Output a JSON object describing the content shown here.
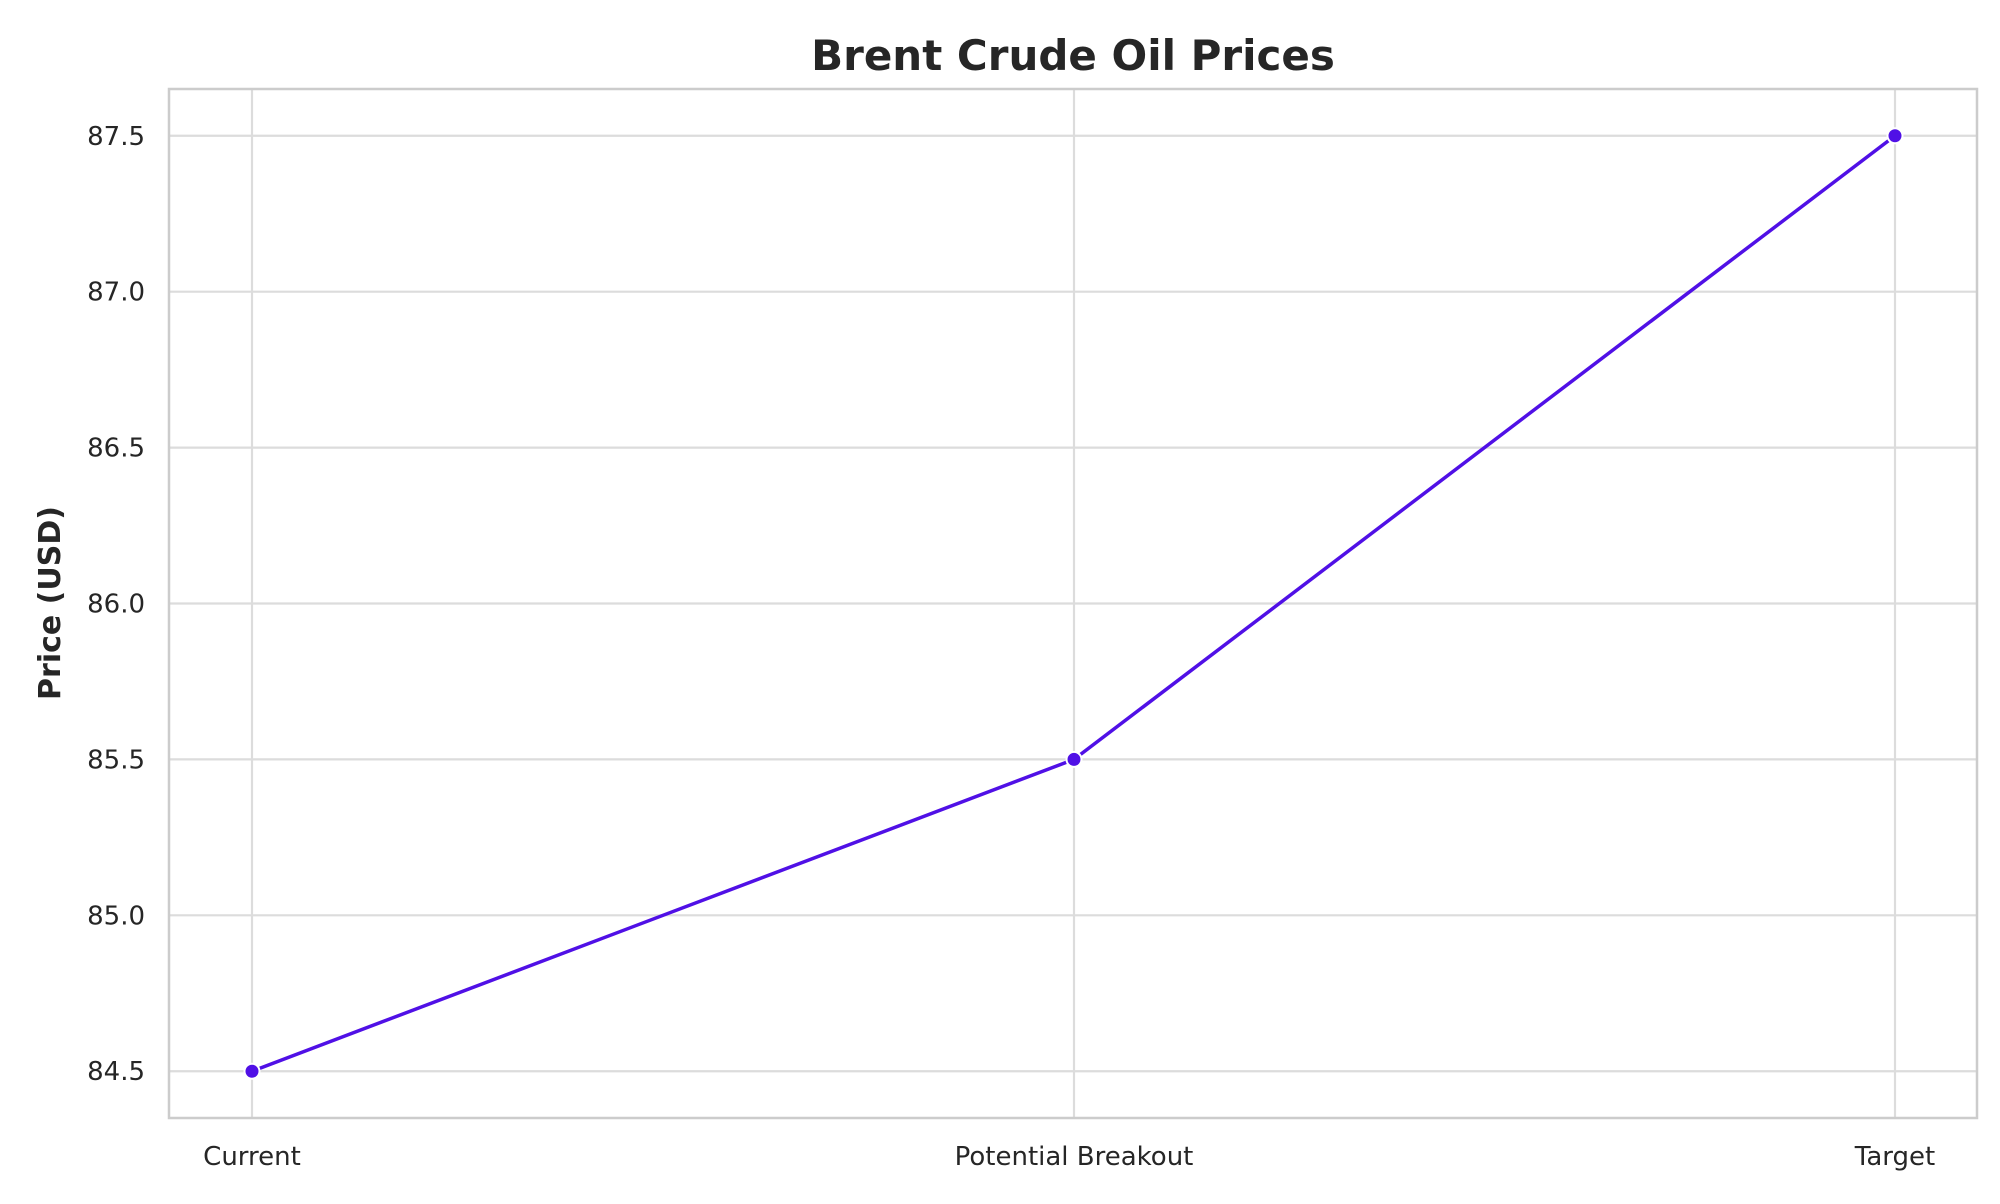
{
  "chart_data": {
    "type": "line",
    "title": "Brent Crude Oil Prices",
    "xlabel": "",
    "ylabel": "Price (USD)",
    "categories": [
      "Current",
      "Potential Breakout",
      "Target"
    ],
    "series": [
      {
        "values": [
          84.5,
          85.5,
          87.5
        ]
      }
    ],
    "ylim": [
      84.35,
      87.65
    ],
    "yticks": [
      "84.5",
      "85.0",
      "85.5",
      "86.0",
      "86.5",
      "87.0",
      "87.5"
    ],
    "grid": true,
    "line_color": "#5010e6",
    "marker_color": "#5010e6"
  }
}
